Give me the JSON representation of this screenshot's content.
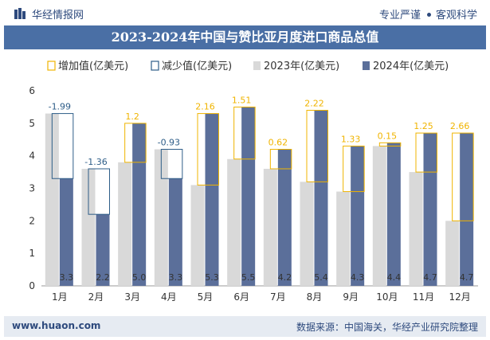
{
  "header": {
    "brand": "华经情报网",
    "tag1": "专业严谨",
    "tag2": "客观科学"
  },
  "title": "2023-2024年中国与赞比亚月度进口商品总值",
  "footer": {
    "site": "www.huaon.com",
    "source": "数据来源：中国海关，华经产业研究院整理"
  },
  "colors": {
    "series2023": "#d9d9d9",
    "series2024": "#5b6f9a",
    "increase": "#f0b400",
    "decrease": "#2e5d88",
    "title_bar": "#4a6fa5"
  },
  "chart_data": {
    "type": "bar",
    "categories": [
      "1月",
      "2月",
      "3月",
      "4月",
      "5月",
      "6月",
      "7月",
      "8月",
      "9月",
      "10月",
      "11月",
      "12月"
    ],
    "series": [
      {
        "name": "2023年(亿美元)",
        "values": [
          5.3,
          3.6,
          3.8,
          4.2,
          3.1,
          3.9,
          3.6,
          3.2,
          2.9,
          4.3,
          3.5,
          2.0
        ]
      },
      {
        "name": "2024年(亿美元)",
        "values": [
          3.3,
          2.2,
          5.0,
          3.3,
          5.3,
          5.5,
          4.2,
          5.4,
          4.3,
          4.4,
          4.7,
          4.7
        ]
      }
    ],
    "bar_labels_2024": [
      "3.3",
      "2.2",
      "5.0",
      "3.3",
      "5.3",
      "5.5",
      "4.2",
      "5.4",
      "4.3",
      "4.4",
      "4.7",
      "4.7"
    ],
    "changes": [
      -1.99,
      -1.36,
      1.2,
      -0.93,
      2.16,
      1.51,
      0.62,
      2.22,
      1.33,
      0.15,
      1.25,
      2.66
    ],
    "change_labels": [
      "-1.99",
      "-1.36",
      "1.2",
      "-0.93",
      "2.16",
      "1.51",
      "0.62",
      "2.22",
      "1.33",
      "0.15",
      "1.25",
      "2.66"
    ],
    "legend": [
      "增加值(亿美元)",
      "减少值(亿美元)",
      "2023年(亿美元)",
      "2024年(亿美元)"
    ],
    "legend_position": "top",
    "yticks": [
      "0",
      "1",
      "2",
      "3",
      "4",
      "5",
      "6"
    ],
    "ylim": [
      0,
      6
    ],
    "grid": false
  }
}
